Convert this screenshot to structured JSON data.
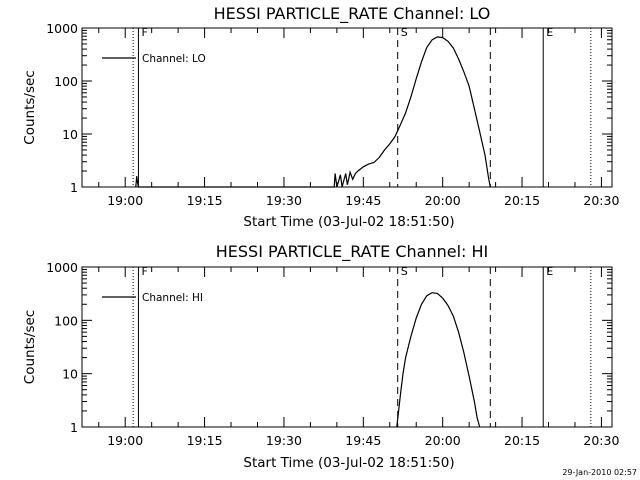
{
  "chart_data": [
    {
      "type": "line",
      "title": "HESSI PARTICLE_RATE Channel: LO",
      "xlabel": "Start Time (03-Jul-02 18:51:50)",
      "ylabel": "Counts/sec",
      "yscale": "log",
      "ylim": [
        1,
        1000
      ],
      "xlim": [
        "18:51:50",
        "20:32:00"
      ],
      "ytick_labels": [
        "1",
        "10",
        "100",
        "1000"
      ],
      "xtick_labels": [
        "19:00",
        "19:15",
        "19:30",
        "19:45",
        "20:00",
        "20:15",
        "20:30"
      ],
      "legend": {
        "position": "top-left",
        "entries": [
          "Channel: LO"
        ]
      },
      "series": [
        {
          "name": "Channel: LO",
          "points": [
            [
              "19:02:00",
              1
            ],
            [
              "19:02:10",
              1.6
            ],
            [
              "19:02:20",
              1.2
            ],
            [
              "19:02:30",
              1
            ],
            [
              "19:39:30",
              1
            ],
            [
              "19:39:40",
              1.8
            ],
            [
              "19:40:00",
              1
            ],
            [
              "19:40:40",
              1.7
            ],
            [
              "19:41:00",
              1
            ],
            [
              "19:41:40",
              1.8
            ],
            [
              "19:42:00",
              1.1
            ],
            [
              "19:42:30",
              1.9
            ],
            [
              "19:43:00",
              1.4
            ],
            [
              "19:43:30",
              1.8
            ],
            [
              "19:44:00",
              2.0
            ],
            [
              "19:45:00",
              2.4
            ],
            [
              "19:46:00",
              2.7
            ],
            [
              "19:47:00",
              2.9
            ],
            [
              "19:48:00",
              3.6
            ],
            [
              "19:49:00",
              5
            ],
            [
              "19:50:00",
              6.5
            ],
            [
              "19:51:00",
              9
            ],
            [
              "19:52:00",
              15
            ],
            [
              "19:53:00",
              25
            ],
            [
              "19:54:00",
              50
            ],
            [
              "19:55:00",
              110
            ],
            [
              "19:56:00",
              230
            ],
            [
              "19:57:00",
              430
            ],
            [
              "19:58:00",
              600
            ],
            [
              "19:59:00",
              680
            ],
            [
              "20:00:00",
              660
            ],
            [
              "20:01:00",
              560
            ],
            [
              "20:02:00",
              420
            ],
            [
              "20:03:00",
              260
            ],
            [
              "20:04:00",
              150
            ],
            [
              "20:05:00",
              80
            ],
            [
              "20:06:00",
              30
            ],
            [
              "20:07:00",
              11
            ],
            [
              "20:08:00",
              4
            ],
            [
              "20:08:40",
              1.5
            ],
            [
              "20:09:00",
              1
            ]
          ]
        }
      ],
      "markers": [
        {
          "label": "F",
          "time": "19:02:30",
          "style": "solid"
        },
        {
          "label": "",
          "time": "19:01:30",
          "style": "dotted"
        },
        {
          "label": "S",
          "time": "19:51:30",
          "style": "dashed"
        },
        {
          "label": "",
          "time": "20:09:00",
          "style": "dashed"
        },
        {
          "label": "E",
          "time": "20:19:00",
          "style": "solid"
        },
        {
          "label": "",
          "time": "20:28:00",
          "style": "dotted"
        }
      ]
    },
    {
      "type": "line",
      "title": "HESSI PARTICLE_RATE Channel: HI",
      "xlabel": "Start Time (03-Jul-02 18:51:50)",
      "ylabel": "Counts/sec",
      "yscale": "log",
      "ylim": [
        1,
        1000
      ],
      "xlim": [
        "18:51:50",
        "20:32:00"
      ],
      "ytick_labels": [
        "1",
        "10",
        "100",
        "1000"
      ],
      "xtick_labels": [
        "19:00",
        "19:15",
        "19:30",
        "19:45",
        "20:00",
        "20:15",
        "20:30"
      ],
      "legend": {
        "position": "top-left",
        "entries": [
          "Channel: HI"
        ]
      },
      "series": [
        {
          "name": "Channel: HI",
          "points": [
            [
              "19:51:20",
              1
            ],
            [
              "19:51:40",
              2
            ],
            [
              "19:52:00",
              4
            ],
            [
              "19:52:30",
              10
            ],
            [
              "19:53:00",
              20
            ],
            [
              "19:54:00",
              50
            ],
            [
              "19:55:00",
              110
            ],
            [
              "19:56:00",
              200
            ],
            [
              "19:57:00",
              290
            ],
            [
              "19:58:00",
              330
            ],
            [
              "19:59:00",
              320
            ],
            [
              "20:00:00",
              260
            ],
            [
              "20:01:00",
              190
            ],
            [
              "20:02:00",
              120
            ],
            [
              "20:03:00",
              60
            ],
            [
              "20:04:00",
              25
            ],
            [
              "20:05:00",
              9
            ],
            [
              "20:06:00",
              3
            ],
            [
              "20:06:30",
              1.5
            ],
            [
              "20:07:00",
              1
            ]
          ]
        }
      ],
      "markers": [
        {
          "label": "F",
          "time": "19:02:30",
          "style": "solid"
        },
        {
          "label": "",
          "time": "19:01:30",
          "style": "dotted"
        },
        {
          "label": "S",
          "time": "19:51:30",
          "style": "dashed"
        },
        {
          "label": "",
          "time": "20:09:00",
          "style": "dashed"
        },
        {
          "label": "E",
          "time": "20:19:00",
          "style": "solid"
        },
        {
          "label": "",
          "time": "20:28:00",
          "style": "dotted"
        }
      ]
    }
  ],
  "footer": {
    "timestamp": "29-Jan-2010 02:57"
  }
}
